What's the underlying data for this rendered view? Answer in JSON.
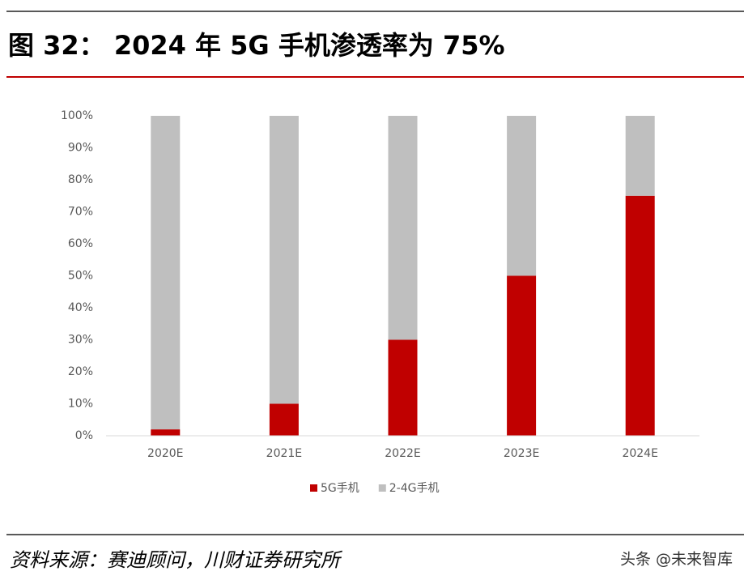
{
  "title": "图 32：  2024 年 5G 手机渗透率为 75%",
  "source": "资料来源：赛迪顾问，川财证券研究所",
  "watermark": "头条 @未来智库",
  "chart_data": {
    "type": "stacked_bar",
    "categories": [
      "2020E",
      "2021E",
      "2022E",
      "2023E",
      "2024E"
    ],
    "series": [
      {
        "name": "5G手机",
        "color": "#c00000",
        "values": [
          2,
          10,
          30,
          50,
          75
        ]
      },
      {
        "name": "2-4G手机",
        "color": "#bfbfbf",
        "values": [
          98,
          90,
          70,
          50,
          25
        ]
      }
    ],
    "ylim": [
      0,
      100
    ],
    "yticks": [
      {
        "value": 0,
        "label": "0%"
      },
      {
        "value": 10,
        "label": "10%"
      },
      {
        "value": 20,
        "label": "20%"
      },
      {
        "value": 30,
        "label": "30%"
      },
      {
        "value": 40,
        "label": "40%"
      },
      {
        "value": 50,
        "label": "50%"
      },
      {
        "value": 60,
        "label": "60%"
      },
      {
        "value": 70,
        "label": "70%"
      },
      {
        "value": 80,
        "label": "80%"
      },
      {
        "value": 90,
        "label": "90%"
      },
      {
        "value": 100,
        "label": "100%"
      }
    ],
    "grid": false,
    "legend": "bottom"
  }
}
